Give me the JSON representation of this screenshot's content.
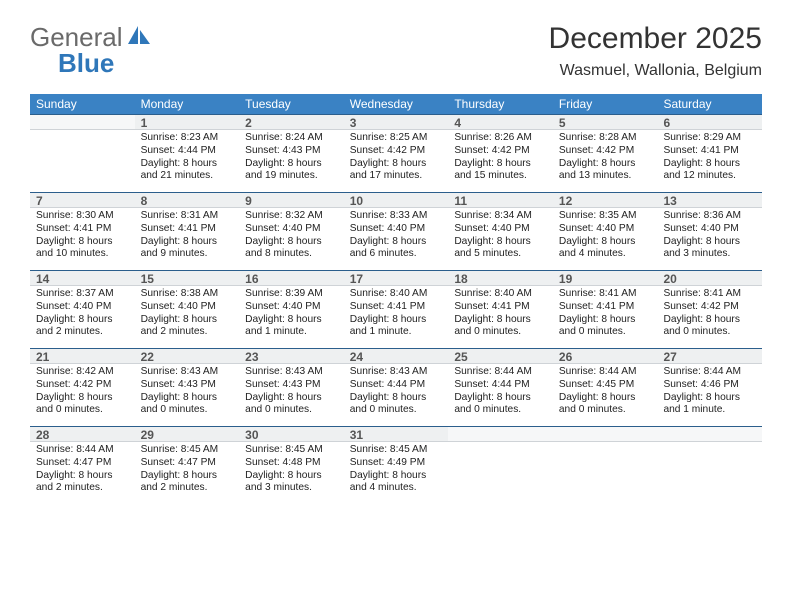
{
  "logo": {
    "text1": "General",
    "text2": "Blue"
  },
  "title": "December 2025",
  "location": "Wasmuel, Wallonia, Belgium",
  "colors": {
    "header_bg": "#3a82c4",
    "header_text": "#ffffff",
    "daynum_bg": "#eef0f1",
    "daynum_border_top": "#2b5e8c",
    "logo_gray": "#6a6a6a",
    "logo_blue": "#2f77b9"
  },
  "day_names": [
    "Sunday",
    "Monday",
    "Tuesday",
    "Wednesday",
    "Thursday",
    "Friday",
    "Saturday"
  ],
  "weeks": [
    [
      {
        "num": "",
        "lines": []
      },
      {
        "num": "1",
        "lines": [
          "Sunrise: 8:23 AM",
          "Sunset: 4:44 PM",
          "Daylight: 8 hours",
          "and 21 minutes."
        ]
      },
      {
        "num": "2",
        "lines": [
          "Sunrise: 8:24 AM",
          "Sunset: 4:43 PM",
          "Daylight: 8 hours",
          "and 19 minutes."
        ]
      },
      {
        "num": "3",
        "lines": [
          "Sunrise: 8:25 AM",
          "Sunset: 4:42 PM",
          "Daylight: 8 hours",
          "and 17 minutes."
        ]
      },
      {
        "num": "4",
        "lines": [
          "Sunrise: 8:26 AM",
          "Sunset: 4:42 PM",
          "Daylight: 8 hours",
          "and 15 minutes."
        ]
      },
      {
        "num": "5",
        "lines": [
          "Sunrise: 8:28 AM",
          "Sunset: 4:42 PM",
          "Daylight: 8 hours",
          "and 13 minutes."
        ]
      },
      {
        "num": "6",
        "lines": [
          "Sunrise: 8:29 AM",
          "Sunset: 4:41 PM",
          "Daylight: 8 hours",
          "and 12 minutes."
        ]
      }
    ],
    [
      {
        "num": "7",
        "lines": [
          "Sunrise: 8:30 AM",
          "Sunset: 4:41 PM",
          "Daylight: 8 hours",
          "and 10 minutes."
        ]
      },
      {
        "num": "8",
        "lines": [
          "Sunrise: 8:31 AM",
          "Sunset: 4:41 PM",
          "Daylight: 8 hours",
          "and 9 minutes."
        ]
      },
      {
        "num": "9",
        "lines": [
          "Sunrise: 8:32 AM",
          "Sunset: 4:40 PM",
          "Daylight: 8 hours",
          "and 8 minutes."
        ]
      },
      {
        "num": "10",
        "lines": [
          "Sunrise: 8:33 AM",
          "Sunset: 4:40 PM",
          "Daylight: 8 hours",
          "and 6 minutes."
        ]
      },
      {
        "num": "11",
        "lines": [
          "Sunrise: 8:34 AM",
          "Sunset: 4:40 PM",
          "Daylight: 8 hours",
          "and 5 minutes."
        ]
      },
      {
        "num": "12",
        "lines": [
          "Sunrise: 8:35 AM",
          "Sunset: 4:40 PM",
          "Daylight: 8 hours",
          "and 4 minutes."
        ]
      },
      {
        "num": "13",
        "lines": [
          "Sunrise: 8:36 AM",
          "Sunset: 4:40 PM",
          "Daylight: 8 hours",
          "and 3 minutes."
        ]
      }
    ],
    [
      {
        "num": "14",
        "lines": [
          "Sunrise: 8:37 AM",
          "Sunset: 4:40 PM",
          "Daylight: 8 hours",
          "and 2 minutes."
        ]
      },
      {
        "num": "15",
        "lines": [
          "Sunrise: 8:38 AM",
          "Sunset: 4:40 PM",
          "Daylight: 8 hours",
          "and 2 minutes."
        ]
      },
      {
        "num": "16",
        "lines": [
          "Sunrise: 8:39 AM",
          "Sunset: 4:40 PM",
          "Daylight: 8 hours",
          "and 1 minute."
        ]
      },
      {
        "num": "17",
        "lines": [
          "Sunrise: 8:40 AM",
          "Sunset: 4:41 PM",
          "Daylight: 8 hours",
          "and 1 minute."
        ]
      },
      {
        "num": "18",
        "lines": [
          "Sunrise: 8:40 AM",
          "Sunset: 4:41 PM",
          "Daylight: 8 hours",
          "and 0 minutes."
        ]
      },
      {
        "num": "19",
        "lines": [
          "Sunrise: 8:41 AM",
          "Sunset: 4:41 PM",
          "Daylight: 8 hours",
          "and 0 minutes."
        ]
      },
      {
        "num": "20",
        "lines": [
          "Sunrise: 8:41 AM",
          "Sunset: 4:42 PM",
          "Daylight: 8 hours",
          "and 0 minutes."
        ]
      }
    ],
    [
      {
        "num": "21",
        "lines": [
          "Sunrise: 8:42 AM",
          "Sunset: 4:42 PM",
          "Daylight: 8 hours",
          "and 0 minutes."
        ]
      },
      {
        "num": "22",
        "lines": [
          "Sunrise: 8:43 AM",
          "Sunset: 4:43 PM",
          "Daylight: 8 hours",
          "and 0 minutes."
        ]
      },
      {
        "num": "23",
        "lines": [
          "Sunrise: 8:43 AM",
          "Sunset: 4:43 PM",
          "Daylight: 8 hours",
          "and 0 minutes."
        ]
      },
      {
        "num": "24",
        "lines": [
          "Sunrise: 8:43 AM",
          "Sunset: 4:44 PM",
          "Daylight: 8 hours",
          "and 0 minutes."
        ]
      },
      {
        "num": "25",
        "lines": [
          "Sunrise: 8:44 AM",
          "Sunset: 4:44 PM",
          "Daylight: 8 hours",
          "and 0 minutes."
        ]
      },
      {
        "num": "26",
        "lines": [
          "Sunrise: 8:44 AM",
          "Sunset: 4:45 PM",
          "Daylight: 8 hours",
          "and 0 minutes."
        ]
      },
      {
        "num": "27",
        "lines": [
          "Sunrise: 8:44 AM",
          "Sunset: 4:46 PM",
          "Daylight: 8 hours",
          "and 1 minute."
        ]
      }
    ],
    [
      {
        "num": "28",
        "lines": [
          "Sunrise: 8:44 AM",
          "Sunset: 4:47 PM",
          "Daylight: 8 hours",
          "and 2 minutes."
        ]
      },
      {
        "num": "29",
        "lines": [
          "Sunrise: 8:45 AM",
          "Sunset: 4:47 PM",
          "Daylight: 8 hours",
          "and 2 minutes."
        ]
      },
      {
        "num": "30",
        "lines": [
          "Sunrise: 8:45 AM",
          "Sunset: 4:48 PM",
          "Daylight: 8 hours",
          "and 3 minutes."
        ]
      },
      {
        "num": "31",
        "lines": [
          "Sunrise: 8:45 AM",
          "Sunset: 4:49 PM",
          "Daylight: 8 hours",
          "and 4 minutes."
        ]
      },
      {
        "num": "",
        "lines": []
      },
      {
        "num": "",
        "lines": []
      },
      {
        "num": "",
        "lines": []
      }
    ]
  ]
}
